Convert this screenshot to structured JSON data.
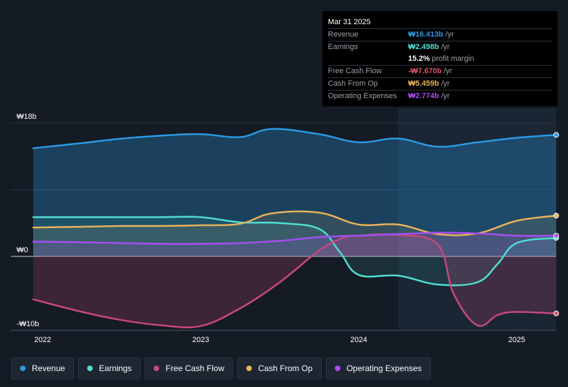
{
  "tooltip": {
    "date": "Mar 31 2025",
    "rows": [
      {
        "label": "Revenue",
        "value": "₩16.413b",
        "unit": " /yr",
        "color": "#2b9ae6"
      },
      {
        "label": "Earnings",
        "value": "₩2.498b",
        "unit": " /yr",
        "color": "#4fdfd3"
      },
      {
        "label": "",
        "value": "15.2%",
        "unit": " profit margin",
        "color": "#ffffff"
      },
      {
        "label": "Free Cash Flow",
        "value": "-₩7.670b",
        "unit": " /yr",
        "color": "#e0506b"
      },
      {
        "label": "Cash From Op",
        "value": "₩5.459b",
        "unit": " /yr",
        "color": "#e8b35a"
      },
      {
        "label": "Operating Expenses",
        "value": "₩2.774b",
        "unit": " /yr",
        "color": "#a74ef0"
      }
    ]
  },
  "legend": [
    {
      "label": "Revenue",
      "color": "#2b9ae6"
    },
    {
      "label": "Earnings",
      "color": "#4fdfd3"
    },
    {
      "label": "Free Cash Flow",
      "color": "#c9487d"
    },
    {
      "label": "Cash From Op",
      "color": "#e8b35a"
    },
    {
      "label": "Operating Expenses",
      "color": "#a74ef0"
    }
  ],
  "chart_data": {
    "type": "line",
    "x_range": [
      2021.94,
      2025.25
    ],
    "ylim": [
      -10,
      18
    ],
    "y_tick_labels": [
      {
        "value": 18,
        "label": "₩18b"
      },
      {
        "value": 0,
        "label": "₩0"
      },
      {
        "value": -10,
        "label": "-₩10b"
      }
    ],
    "x_tick_labels": [
      {
        "value": 2022,
        "label": "2022"
      },
      {
        "value": 2023,
        "label": "2023"
      },
      {
        "value": 2024,
        "label": "2024"
      },
      {
        "value": 2025,
        "label": "2025"
      }
    ],
    "forecast_start": 2024.25,
    "series": [
      {
        "name": "Revenue",
        "color": "#2b9ae6",
        "x": [
          2021.94,
          2022.25,
          2022.5,
          2022.75,
          2023.0,
          2023.25,
          2023.45,
          2023.75,
          2024.0,
          2024.25,
          2024.5,
          2024.75,
          2025.0,
          2025.25
        ],
        "y": [
          14.6,
          15.3,
          15.9,
          16.3,
          16.5,
          16.1,
          17.2,
          16.5,
          15.4,
          15.9,
          14.8,
          15.4,
          16.0,
          16.4
        ]
      },
      {
        "name": "Earnings",
        "color": "#4fdfd3",
        "x": [
          2021.94,
          2022.25,
          2022.5,
          2022.75,
          2023.0,
          2023.25,
          2023.5,
          2023.75,
          2023.88,
          2024.0,
          2024.25,
          2024.5,
          2024.75,
          2024.88,
          2025.0,
          2025.25
        ],
        "y": [
          5.3,
          5.3,
          5.3,
          5.3,
          5.3,
          4.6,
          4.5,
          3.7,
          0.6,
          -2.5,
          -2.6,
          -3.8,
          -3.5,
          -1.0,
          1.8,
          2.5
        ]
      },
      {
        "name": "Free Cash Flow",
        "color": "#c9487d",
        "x": [
          2021.94,
          2022.25,
          2022.5,
          2022.75,
          2023.0,
          2023.25,
          2023.5,
          2023.75,
          2023.9,
          2024.0,
          2024.25,
          2024.5,
          2024.6,
          2024.75,
          2024.88,
          2025.0,
          2025.25
        ],
        "y": [
          -5.8,
          -7.5,
          -8.6,
          -9.3,
          -9.4,
          -7.0,
          -3.5,
          0.8,
          2.5,
          2.8,
          2.9,
          1.6,
          -5.0,
          -9.3,
          -7.9,
          -7.5,
          -7.7
        ]
      },
      {
        "name": "Cash From Op",
        "color": "#e8b35a",
        "x": [
          2021.94,
          2022.25,
          2022.5,
          2022.75,
          2023.0,
          2023.25,
          2023.45,
          2023.75,
          2024.0,
          2024.25,
          2024.5,
          2024.75,
          2025.0,
          2025.25
        ],
        "y": [
          3.9,
          4.0,
          4.1,
          4.1,
          4.2,
          4.4,
          5.8,
          5.9,
          4.3,
          4.3,
          3.0,
          3.1,
          4.8,
          5.5
        ]
      },
      {
        "name": "Operating Expenses",
        "color": "#a74ef0",
        "x": [
          2021.94,
          2022.25,
          2022.5,
          2022.75,
          2023.0,
          2023.25,
          2023.5,
          2023.75,
          2024.0,
          2024.25,
          2024.5,
          2024.75,
          2025.0,
          2025.25
        ],
        "y": [
          2.0,
          1.9,
          1.8,
          1.7,
          1.7,
          1.8,
          2.1,
          2.6,
          2.8,
          3.0,
          3.2,
          3.1,
          2.8,
          2.8
        ]
      }
    ]
  }
}
